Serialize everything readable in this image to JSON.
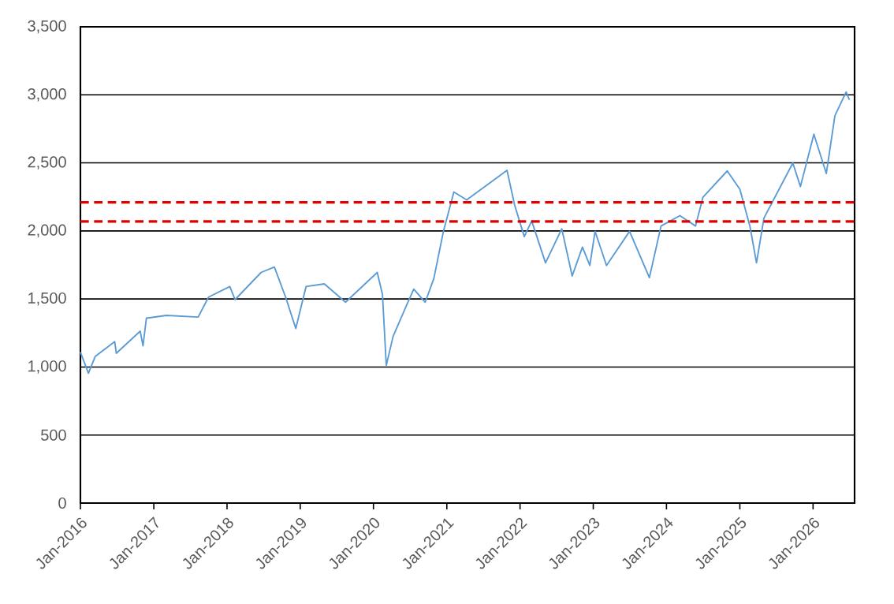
{
  "chart_data": {
    "type": "line",
    "x": [
      "2016-01-01",
      "2016-02-10",
      "2016-03-15",
      "2016-06-20",
      "2016-06-28",
      "2016-10-25",
      "2016-11-08",
      "2016-11-25",
      "2017-03-05",
      "2017-08-10",
      "2017-10-01",
      "2018-01-15",
      "2018-02-10",
      "2018-06-20",
      "2018-08-25",
      "2018-10-20",
      "2018-12-10",
      "2019-01-30",
      "2019-05-01",
      "2019-08-15",
      "2020-01-20",
      "2020-02-15",
      "2020-03-05",
      "2020-04-08",
      "2020-06-15",
      "2020-07-20",
      "2020-09-15",
      "2020-10-28",
      "2020-12-15",
      "2021-02-05",
      "2021-04-10",
      "2021-10-28",
      "2021-12-05",
      "2022-01-22",
      "2022-02-28",
      "2022-05-08",
      "2022-07-28",
      "2022-09-18",
      "2022-11-08",
      "2022-12-15",
      "2023-01-10",
      "2023-03-08",
      "2023-07-01",
      "2023-10-08",
      "2023-12-05",
      "2024-03-08",
      "2024-05-25",
      "2024-07-01",
      "2024-10-30",
      "2025-01-01",
      "2025-02-20",
      "2025-03-25",
      "2025-05-01",
      "2025-09-22",
      "2025-10-30",
      "2026-01-05",
      "2026-03-08",
      "2026-04-20",
      "2026-06-15",
      "2026-07-01"
    ],
    "series": [
      {
        "color": "#5b9bd5",
        "values": [
          1109,
          954,
          1078,
          1186,
          1101,
          1263,
          1155,
          1359,
          1379,
          1367,
          1514,
          1591,
          1495,
          1695,
          1735,
          1514,
          1283,
          1591,
          1611,
          1476,
          1695,
          1533,
          1012,
          1225,
          1456,
          1572,
          1476,
          1649,
          1997,
          2286,
          2228,
          2445,
          2190,
          1958,
          2074,
          1765,
          2016,
          1669,
          1881,
          1746,
          1997,
          1746,
          1997,
          1657,
          2036,
          2112,
          2036,
          2248,
          2441,
          2306,
          2036,
          1765,
          2094,
          2499,
          2326,
          2711,
          2422,
          2847,
          3021,
          2963
        ]
      }
    ],
    "xlim": [
      "2016-01-01",
      "2026-07-27"
    ],
    "xticks": [
      {
        "value": "2016-01-01",
        "label": "Jan-2016"
      },
      {
        "value": "2017-01-01",
        "label": "Jan-2017"
      },
      {
        "value": "2018-01-01",
        "label": "Jan-2018"
      },
      {
        "value": "2019-01-01",
        "label": "Jan-2019"
      },
      {
        "value": "2020-01-01",
        "label": "Jan-2020"
      },
      {
        "value": "2021-01-01",
        "label": "Jan-2021"
      },
      {
        "value": "2022-01-01",
        "label": "Jan-2022"
      },
      {
        "value": "2023-01-01",
        "label": "Jan-2023"
      },
      {
        "value": "2024-01-01",
        "label": "Jan-2024"
      },
      {
        "value": "2025-01-01",
        "label": "Jan-2025"
      },
      {
        "value": "2026-01-01",
        "label": "Jan-2026"
      }
    ],
    "ylim": [
      0,
      3500
    ],
    "yticks": [
      0,
      {
        "value": 500,
        "label": "500"
      },
      {
        "value": 1000,
        "label": "1,000"
      },
      {
        "value": 1500,
        "label": "1,500"
      },
      {
        "value": 2000,
        "label": "2,000"
      },
      {
        "value": 2500,
        "label": "2,500"
      },
      {
        "value": 3000,
        "label": "3,000"
      },
      {
        "value": 3500,
        "label": "3,500"
      }
    ],
    "grid": "y",
    "ref_lines": [
      {
        "axis": "y",
        "value": 2210,
        "color": "#e00000",
        "line_style": "dashed"
      },
      {
        "axis": "y",
        "value": 2070,
        "color": "#e00000",
        "line_style": "dashed"
      }
    ]
  }
}
